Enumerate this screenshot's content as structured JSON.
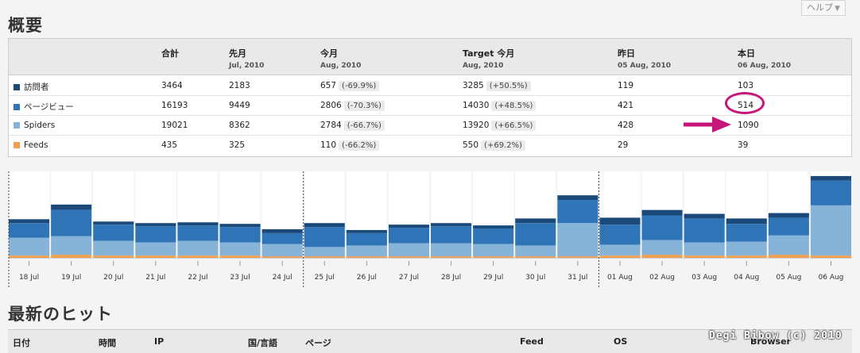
{
  "help": {
    "label": "ヘルプ",
    "caret": "▼"
  },
  "overview_title": "概要",
  "summary": {
    "columns": [
      {
        "label": "",
        "sub": ""
      },
      {
        "label": "合計",
        "sub": ""
      },
      {
        "label": "先月",
        "sub": "Jul, 2010"
      },
      {
        "label": "今月",
        "sub": "Aug, 2010"
      },
      {
        "label": "Target 今月",
        "sub": "Aug, 2010"
      },
      {
        "label": "昨日",
        "sub": "05 Aug, 2010"
      },
      {
        "label": "本日",
        "sub": "06 Aug, 2010"
      }
    ],
    "rows": [
      {
        "name": "訪問者",
        "color": "#1b4a7a",
        "total": "3464",
        "last_month": "2183",
        "this_month": "657",
        "this_month_pct": "(-69.9%)",
        "target": "3285",
        "target_pct": "(+50.5%)",
        "yesterday": "119",
        "today": "103"
      },
      {
        "name": "ページビュー",
        "color": "#2f74b7",
        "total": "16193",
        "last_month": "9449",
        "this_month": "2806",
        "this_month_pct": "(-70.3%)",
        "target": "14030",
        "target_pct": "(+48.5%)",
        "yesterday": "421",
        "today": "514"
      },
      {
        "name": "Spiders",
        "color": "#86b3d8",
        "total": "19021",
        "last_month": "8362",
        "this_month": "2784",
        "this_month_pct": "(-66.7%)",
        "target": "13920",
        "target_pct": "(+66.5%)",
        "yesterday": "428",
        "today": "1090"
      },
      {
        "name": "Feeds",
        "color": "#f0a050",
        "total": "435",
        "last_month": "325",
        "this_month": "110",
        "this_month_pct": "(-66.2%)",
        "target": "550",
        "target_pct": "(+69.2%)",
        "yesterday": "29",
        "today": "39"
      }
    ]
  },
  "annotation_color": "#c8157a",
  "chart_data": {
    "type": "bar",
    "stacked": true,
    "categories": [
      "18 Jul",
      "19 Jul",
      "20 Jul",
      "21 Jul",
      "22 Jul",
      "23 Jul",
      "24 Jul",
      "25 Jul",
      "26 Jul",
      "27 Jul",
      "28 Jul",
      "29 Jul",
      "30 Jul",
      "31 Jul",
      "01 Aug",
      "02 Aug",
      "03 Aug",
      "04 Aug",
      "05 Aug",
      "06 Aug"
    ],
    "series": [
      {
        "name": "Feeds",
        "color": "#f0a050",
        "values": [
          3,
          4,
          3,
          3,
          3,
          3,
          2,
          2,
          2,
          2,
          2,
          2,
          2,
          2,
          3,
          4,
          3,
          3,
          4,
          3
        ]
      },
      {
        "name": "Spiders",
        "color": "#86b3d8",
        "values": [
          23,
          24,
          19,
          17,
          19,
          17,
          16,
          12,
          14,
          17,
          17,
          16,
          14,
          43,
          14,
          19,
          17,
          18,
          25,
          65
        ]
      },
      {
        "name": "ページビュー",
        "color": "#2f74b7",
        "values": [
          19,
          34,
          21,
          21,
          20,
          20,
          14,
          26,
          16,
          20,
          22,
          20,
          29,
          30,
          26,
          32,
          31,
          23,
          23,
          32
        ]
      },
      {
        "name": "訪問者",
        "color": "#1b4a7a",
        "values": [
          5,
          7,
          4,
          4,
          4,
          4,
          5,
          5,
          4,
          4,
          4,
          4,
          6,
          6,
          9,
          7,
          6,
          7,
          6,
          6
        ]
      }
    ],
    "ylim": [
      0,
      110
    ],
    "month_dividers_after": [
      "17 Jul",
      "24 Jul",
      "31 Jul"
    ]
  },
  "hits_title": "最新のヒット",
  "hits_columns": [
    "日付",
    "時間",
    "IP",
    "国/言語",
    "ページ",
    "Feed",
    "OS",
    "Browser"
  ],
  "watermark": "Degi Bibow (c) 2010"
}
